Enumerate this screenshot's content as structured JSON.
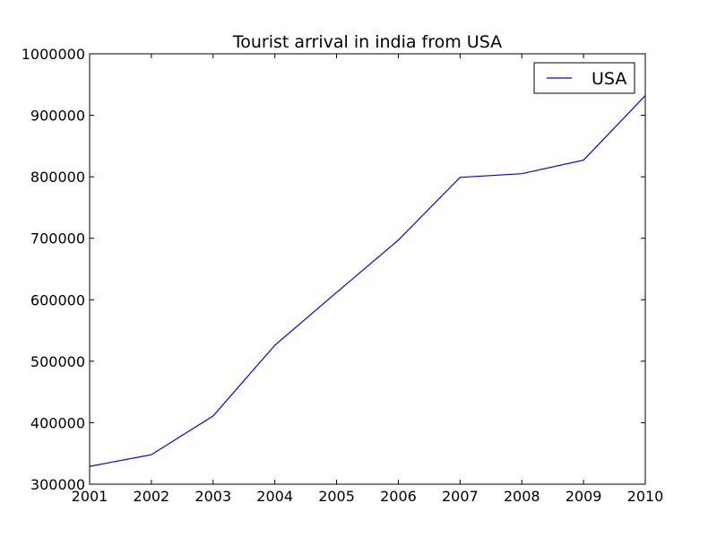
{
  "chart_data": {
    "type": "line",
    "title": "Tourist arrival in india from USA",
    "xlabel": "",
    "ylabel": "",
    "x": [
      2001,
      2002,
      2003,
      2004,
      2005,
      2006,
      2007,
      2008,
      2009,
      2010
    ],
    "series": [
      {
        "name": "USA",
        "color": "#0000ff",
        "values": [
          329000,
          348000,
          411000,
          526000,
          612000,
          697000,
          799000,
          805000,
          827000,
          932000
        ]
      }
    ],
    "xlim": [
      2001,
      2010
    ],
    "ylim": [
      300000,
      1000000
    ],
    "xticks": [
      2001,
      2002,
      2003,
      2004,
      2005,
      2006,
      2007,
      2008,
      2009,
      2010
    ],
    "yticks": [
      300000,
      400000,
      500000,
      600000,
      700000,
      800000,
      900000,
      1000000
    ],
    "grid": false,
    "legend_position": "top-right"
  }
}
